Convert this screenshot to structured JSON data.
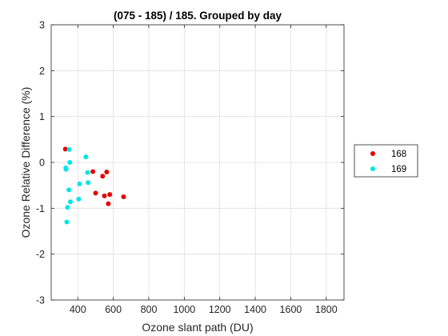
{
  "chart_data": {
    "type": "scatter",
    "title": "(075 - 185) / 185.  Grouped by day",
    "xlabel": "Ozone slant path (DU)",
    "ylabel": "Ozone Relative Difference (%)",
    "xlim": [
      250,
      1900
    ],
    "ylim": [
      -3,
      3
    ],
    "xticks": [
      400,
      600,
      800,
      1000,
      1200,
      1400,
      1600,
      1800
    ],
    "yticks": [
      -3,
      -2,
      -1,
      0,
      1,
      2,
      3
    ],
    "grid": true,
    "legend_position": "outside-right",
    "series": [
      {
        "name": "168",
        "color": "#e60000",
        "points": [
          [
            330,
            0.29
          ],
          [
            485,
            -0.2
          ],
          [
            500,
            -0.67
          ],
          [
            540,
            -0.3
          ],
          [
            550,
            -0.73
          ],
          [
            563,
            -0.21
          ],
          [
            572,
            -0.9
          ],
          [
            580,
            -0.7
          ],
          [
            658,
            -0.75
          ]
        ]
      },
      {
        "name": "169",
        "color": "#00e6e6",
        "points": [
          [
            332,
            -0.12
          ],
          [
            334,
            -0.15
          ],
          [
            338,
            -1.3
          ],
          [
            342,
            -0.98
          ],
          [
            350,
            -0.6
          ],
          [
            352,
            0.28
          ],
          [
            355,
            0.0
          ],
          [
            358,
            -0.86
          ],
          [
            405,
            -0.8
          ],
          [
            410,
            -0.47
          ],
          [
            445,
            0.12
          ],
          [
            455,
            -0.22
          ],
          [
            458,
            -0.44
          ]
        ]
      }
    ]
  }
}
